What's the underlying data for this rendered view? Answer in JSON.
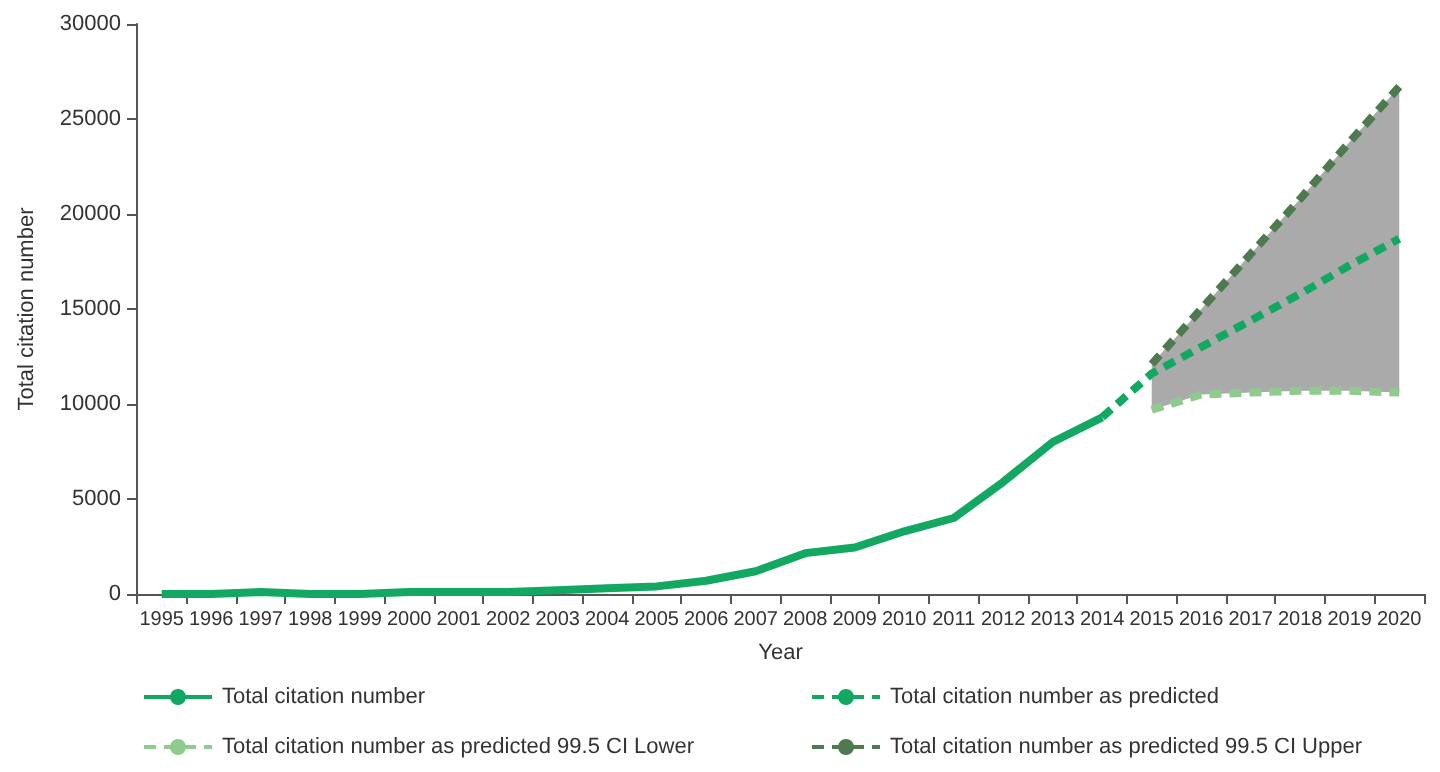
{
  "chart_data": {
    "type": "line",
    "xlabel": "Year",
    "ylabel": "Total citation number",
    "categories": [
      "1995",
      "1996",
      "1997",
      "1998",
      "1999",
      "2000",
      "2001",
      "2002",
      "2003",
      "2004",
      "2005",
      "2006",
      "2007",
      "2008",
      "2009",
      "2010",
      "2011",
      "2012",
      "2013",
      "2014",
      "2015",
      "2016",
      "2017",
      "2018",
      "2019",
      "2020"
    ],
    "series": [
      {
        "name": "Total citation number",
        "color": "#12a862",
        "line_style": "solid",
        "values": [
          0,
          0,
          100,
          0,
          0,
          100,
          100,
          100,
          200,
          300,
          400,
          700,
          1200,
          2150,
          2450,
          3300,
          4000,
          5900,
          8000,
          9300,
          null,
          null,
          null,
          null,
          null,
          null
        ]
      },
      {
        "name": "Total citation number as predicted",
        "color": "#12a862",
        "line_style": "dashed",
        "values": [
          null,
          null,
          null,
          null,
          null,
          null,
          null,
          null,
          null,
          null,
          null,
          null,
          null,
          null,
          null,
          null,
          null,
          null,
          null,
          9300,
          11600,
          13000,
          14400,
          15800,
          17300,
          18700
        ],
        "lower": [
          null,
          null,
          null,
          null,
          null,
          null,
          null,
          null,
          null,
          null,
          null,
          null,
          null,
          null,
          null,
          null,
          null,
          null,
          null,
          null,
          9700,
          10500,
          10600,
          10700,
          10700,
          10600
        ],
        "upper": [
          null,
          null,
          null,
          null,
          null,
          null,
          null,
          null,
          null,
          null,
          null,
          null,
          null,
          null,
          null,
          null,
          null,
          null,
          null,
          null,
          12100,
          15000,
          17900,
          20800,
          23800,
          26700
        ]
      },
      {
        "name": "Total citation number as predicted 99.5 CI Lower",
        "color": "#8fcb8f",
        "line_style": "dashed",
        "values": [
          null,
          null,
          null,
          null,
          null,
          null,
          null,
          null,
          null,
          null,
          null,
          null,
          null,
          null,
          null,
          null,
          null,
          null,
          null,
          null,
          9700,
          10500,
          10600,
          10700,
          10700,
          10600
        ]
      },
      {
        "name": "Total citation number as predicted 99.5 CI Upper",
        "color": "#4f7a4f",
        "line_style": "dashed",
        "values": [
          null,
          null,
          null,
          null,
          null,
          null,
          null,
          null,
          null,
          null,
          null,
          null,
          null,
          null,
          null,
          null,
          null,
          null,
          null,
          null,
          12100,
          15000,
          17900,
          20800,
          23800,
          26700
        ]
      }
    ],
    "ylim": [
      0,
      30000
    ],
    "yticks": [
      0,
      5000,
      10000,
      15000,
      20000,
      25000,
      30000
    ],
    "grid": false,
    "legend": "bottom",
    "marker": "none"
  }
}
